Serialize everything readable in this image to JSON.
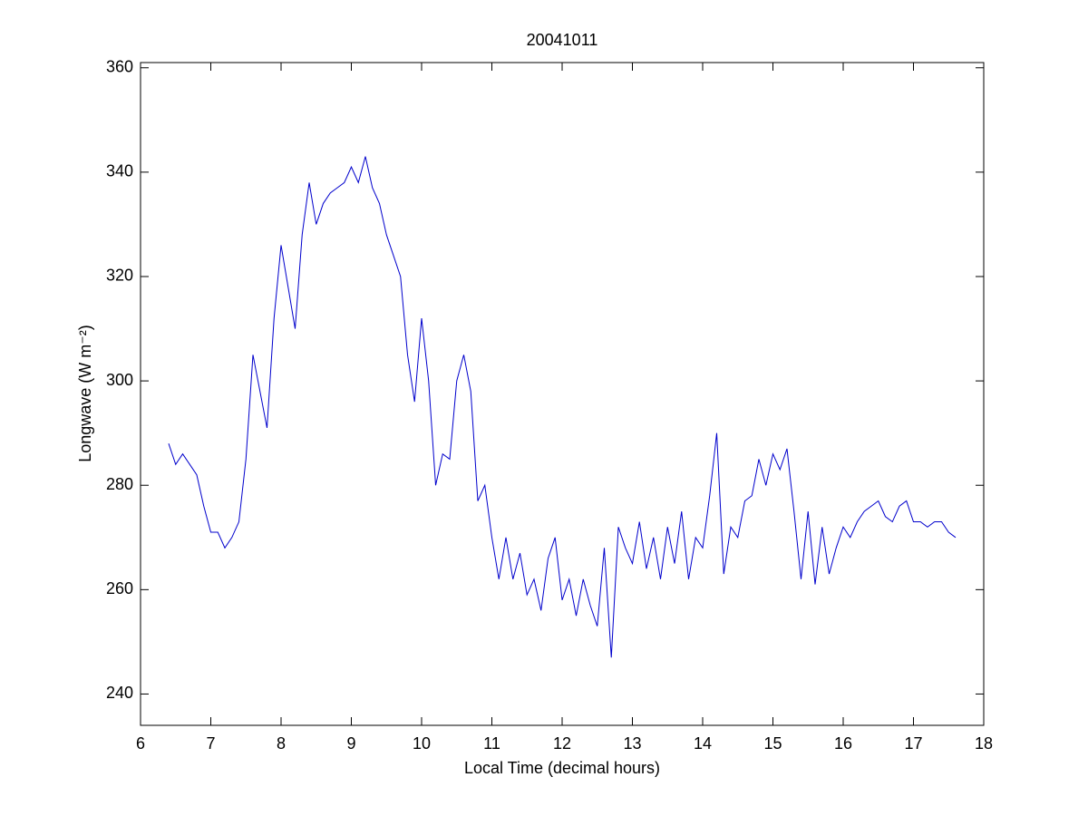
{
  "chart_data": {
    "type": "line",
    "title": "20041011",
    "xlabel": "Local Time (decimal hours)",
    "ylabel": "Longwave (W m⁻²)",
    "xlim": [
      6,
      18
    ],
    "xticks": [
      6,
      7,
      8,
      9,
      10,
      11,
      12,
      13,
      14,
      15,
      16,
      17,
      18
    ],
    "ylim": [
      234,
      361
    ],
    "yticks": [
      240,
      260,
      280,
      300,
      320,
      340,
      360
    ],
    "grid": false,
    "series": [
      {
        "color": "#0000cc",
        "x": [
          6.4,
          6.5,
          6.6,
          6.7,
          6.8,
          6.9,
          7.0,
          7.1,
          7.2,
          7.3,
          7.4,
          7.5,
          7.6,
          7.7,
          7.8,
          7.9,
          8.0,
          8.1,
          8.2,
          8.3,
          8.4,
          8.5,
          8.6,
          8.7,
          8.8,
          8.9,
          9.0,
          9.1,
          9.2,
          9.3,
          9.4,
          9.5,
          9.6,
          9.7,
          9.8,
          9.9,
          10.0,
          10.1,
          10.2,
          10.3,
          10.4,
          10.5,
          10.6,
          10.7,
          10.8,
          10.9,
          11.0,
          11.1,
          11.2,
          11.3,
          11.4,
          11.5,
          11.6,
          11.7,
          11.8,
          11.9,
          12.0,
          12.1,
          12.2,
          12.3,
          12.4,
          12.5,
          12.6,
          12.7,
          12.8,
          12.9,
          13.0,
          13.1,
          13.2,
          13.3,
          13.4,
          13.5,
          13.6,
          13.7,
          13.8,
          13.9,
          14.0,
          14.1,
          14.2,
          14.3,
          14.4,
          14.5,
          14.6,
          14.7,
          14.8,
          14.9,
          15.0,
          15.1,
          15.2,
          15.3,
          15.4,
          15.5,
          15.6,
          15.7,
          15.8,
          15.9,
          16.0,
          16.1,
          16.2,
          16.3,
          16.4,
          16.5,
          16.6,
          16.7,
          16.8,
          16.9,
          17.0,
          17.1,
          17.2,
          17.3,
          17.4,
          17.5,
          17.6
        ],
        "values": [
          288,
          284,
          286,
          284,
          282,
          276,
          271,
          271,
          268,
          270,
          273,
          285,
          305,
          298,
          291,
          312,
          326,
          318,
          310,
          328,
          338,
          330,
          334,
          336,
          337,
          338,
          341,
          338,
          343,
          337,
          334,
          328,
          324,
          320,
          305,
          296,
          312,
          300,
          280,
          286,
          285,
          300,
          305,
          298,
          277,
          280,
          270,
          262,
          270,
          262,
          267,
          259,
          262,
          256,
          266,
          270,
          258,
          262,
          255,
          262,
          257,
          253,
          268,
          247,
          272,
          268,
          265,
          273,
          264,
          270,
          262,
          272,
          265,
          275,
          262,
          270,
          268,
          278,
          290,
          263,
          272,
          270,
          277,
          278,
          285,
          280,
          286,
          283,
          287,
          275,
          262,
          275,
          261,
          272,
          263,
          268,
          272,
          270,
          273,
          275,
          276,
          277,
          274,
          273,
          276,
          277,
          273,
          273,
          272,
          273,
          273,
          271,
          270
        ]
      }
    ]
  }
}
